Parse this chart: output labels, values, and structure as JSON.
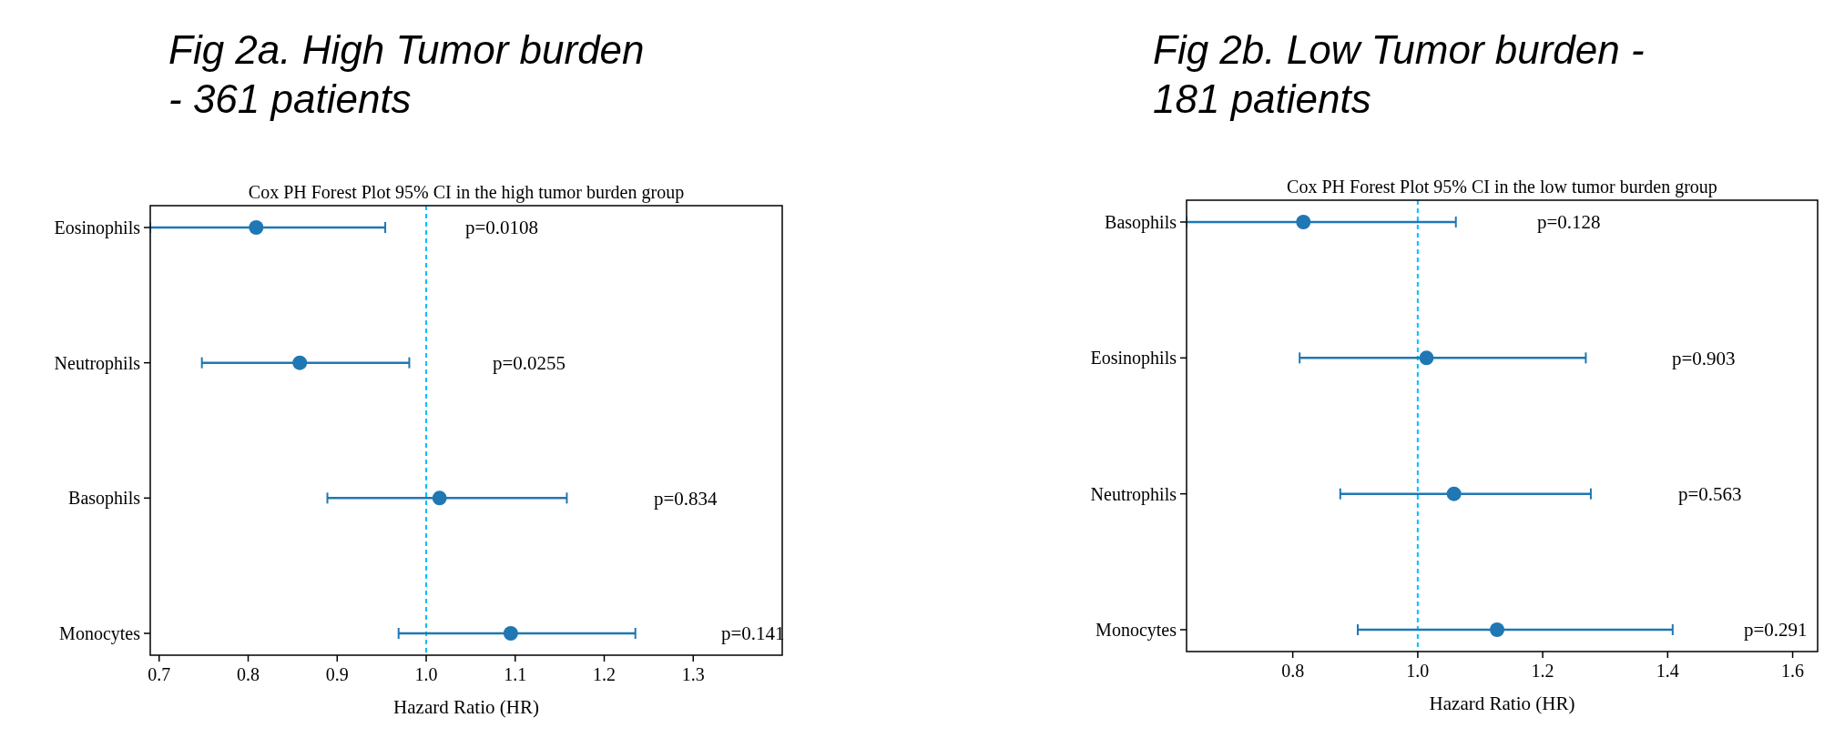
{
  "chart_data": [
    {
      "type": "scatter",
      "orientation": "horizontal",
      "title": "Fig 2a. High Tumor burden - 361 patients",
      "subtitle": "Cox PH Forest Plot 95% CI in the high tumor burden group",
      "xlabel": "Hazard Ratio (HR)",
      "categories": [
        "Eosinophils",
        "Neutrophils",
        "Basophils",
        "Monocytes"
      ],
      "color": "#1f77b4",
      "values": [
        0.809,
        0.858,
        1.015,
        1.095
      ],
      "errors": [
        [
          0.69,
          0.954
        ],
        [
          0.748,
          0.981
        ],
        [
          0.889,
          1.158
        ],
        [
          0.969,
          1.235
        ]
      ],
      "xlim": [
        0.69,
        1.4
      ],
      "xticks": [
        0.7,
        0.8,
        0.9,
        {
          "value": 1.0,
          "label": "1.0"
        },
        1.1,
        1.2,
        1.3
      ],
      "ref_lines": [
        {
          "axis": "x",
          "value": 1.0,
          "color": "#00bfff",
          "line_style": "dashed"
        }
      ],
      "annotations": [
        "p=0.0108",
        "p=0.0255",
        "p=0.834",
        "p=0.141"
      ],
      "marker": "circle"
    },
    {
      "type": "scatter",
      "orientation": "horizontal",
      "title": "Fig 2b. Low Tumor burden - 181 patients",
      "subtitle": "Cox PH Forest Plot 95% CI in the low tumor burden group",
      "xlabel": "Hazard Ratio (HR)",
      "categories": [
        "Basophils",
        "Eosinophils",
        "Neutrophils",
        "Monocytes"
      ],
      "color": "#1f77b4",
      "values": [
        0.817,
        1.014,
        1.058,
        1.127
      ],
      "errors": [
        [
          0.63,
          1.061
        ],
        [
          0.811,
          1.269
        ],
        [
          0.876,
          1.277
        ],
        [
          0.904,
          1.408
        ]
      ],
      "xlim": [
        0.63,
        1.64
      ],
      "xticks": [
        0.8,
        {
          "value": 1.0,
          "label": "1.0"
        },
        1.2,
        1.4,
        1.6
      ],
      "ref_lines": [
        {
          "axis": "x",
          "value": 1.0,
          "color": "#00bfff",
          "line_style": "dashed"
        }
      ],
      "annotations": [
        "p=0.128",
        "p=0.903",
        "p=0.563",
        "p=0.291"
      ],
      "marker": "circle"
    }
  ]
}
